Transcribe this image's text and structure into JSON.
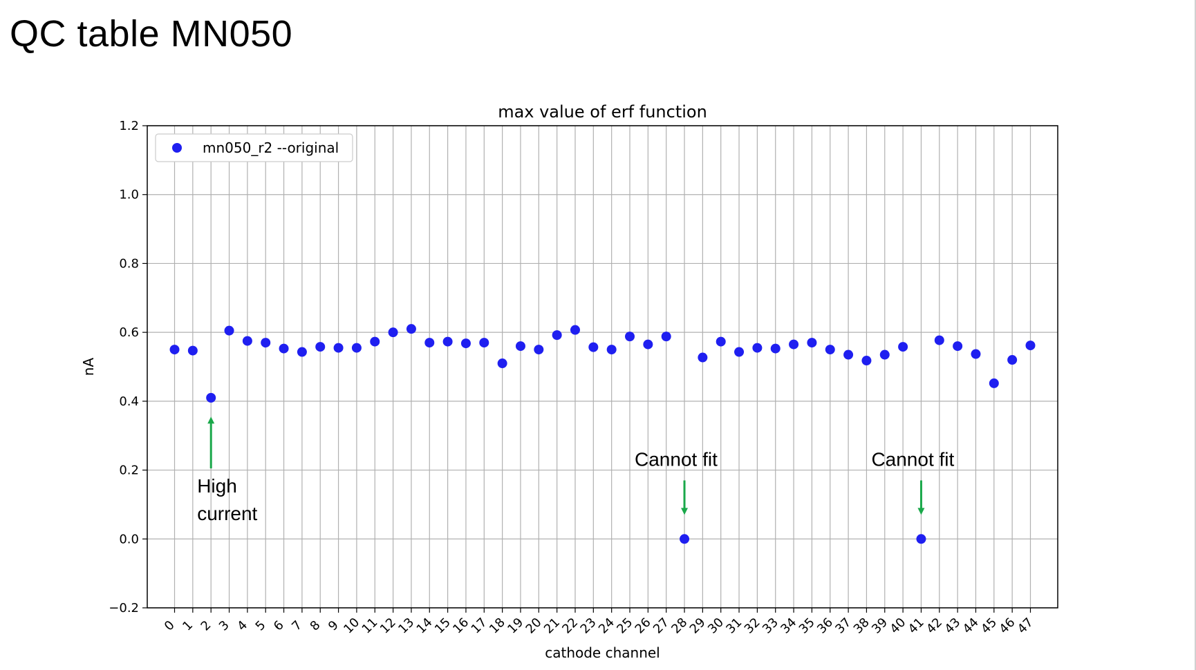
{
  "slide": {
    "title": "QC table MN050"
  },
  "colors": {
    "marker": "#1f1ff0",
    "annotation_arrow": "#1aa84a",
    "grid": "#b0b0b0"
  },
  "chart_data": {
    "type": "scatter",
    "title": "max value of erf function",
    "xlabel": "cathode channel",
    "ylabel": "nA",
    "ylim": [
      -0.2,
      1.2
    ],
    "yticks": [
      -0.2,
      0.0,
      0.2,
      0.4,
      0.6,
      0.8,
      1.0,
      1.2
    ],
    "ytick_labels": [
      "−0.2",
      "0.0",
      "0.2",
      "0.4",
      "0.6",
      "0.8",
      "1.0",
      "1.2"
    ],
    "xlim": [
      -1.5,
      48.5
    ],
    "xticks": [
      0,
      1,
      2,
      3,
      4,
      5,
      6,
      7,
      8,
      9,
      10,
      11,
      12,
      13,
      14,
      15,
      16,
      17,
      18,
      19,
      20,
      21,
      22,
      23,
      24,
      25,
      26,
      27,
      28,
      29,
      30,
      31,
      32,
      33,
      34,
      35,
      36,
      37,
      38,
      39,
      40,
      41,
      42,
      43,
      44,
      45,
      46,
      47
    ],
    "grid": true,
    "legend_position": "upper-left",
    "series": [
      {
        "name": "mn050_r2 --original",
        "x": [
          0,
          1,
          2,
          3,
          4,
          5,
          6,
          7,
          8,
          9,
          10,
          11,
          12,
          13,
          14,
          15,
          16,
          17,
          18,
          19,
          20,
          21,
          22,
          23,
          24,
          25,
          26,
          27,
          28,
          29,
          30,
          31,
          32,
          33,
          34,
          35,
          36,
          37,
          38,
          39,
          40,
          41,
          42,
          43,
          44,
          45,
          46,
          47
        ],
        "y": [
          0.55,
          0.547,
          0.41,
          0.605,
          0.575,
          0.57,
          0.553,
          0.543,
          0.558,
          0.555,
          0.555,
          0.573,
          0.6,
          0.61,
          0.57,
          0.573,
          0.568,
          0.57,
          0.51,
          0.56,
          0.55,
          0.592,
          0.607,
          0.557,
          0.55,
          0.588,
          0.565,
          0.588,
          0.0,
          0.527,
          0.573,
          0.543,
          0.555,
          0.553,
          0.565,
          0.57,
          0.55,
          0.535,
          0.518,
          0.535,
          0.558,
          0.0,
          0.577,
          0.56,
          0.537,
          0.452,
          0.52,
          0.562
        ]
      }
    ],
    "annotations": [
      {
        "text_lines": [
          "High",
          "current"
        ],
        "x": 2,
        "direction": "up"
      },
      {
        "text_lines": [
          "Cannot fit"
        ],
        "x": 28,
        "direction": "down"
      },
      {
        "text_lines": [
          "Cannot fit"
        ],
        "x": 41,
        "direction": "down"
      }
    ]
  }
}
